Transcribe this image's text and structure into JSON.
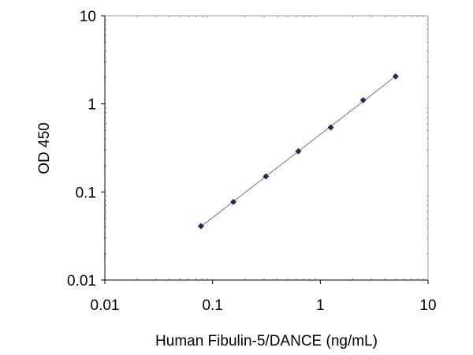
{
  "chart_data": {
    "type": "scatter",
    "title": "",
    "xlabel": "Human Fibulin-5/DANCE   (ng/mL)",
    "ylabel": "OD 450",
    "x_scale": "log",
    "y_scale": "log",
    "xlim": [
      0.01,
      10
    ],
    "ylim": [
      0.01,
      10
    ],
    "x_ticks": [
      "0.01",
      "0.1",
      "1",
      "10"
    ],
    "y_ticks": [
      "0.01",
      "0.1",
      "1",
      "10"
    ],
    "grid": false,
    "legend": "none",
    "series": [
      {
        "x": [
          0.078,
          0.156,
          0.3125,
          0.625,
          1.25,
          2.5,
          5
        ],
        "y": [
          0.041,
          0.077,
          0.15,
          0.29,
          0.54,
          1.1,
          2.05
        ],
        "trendline": "power"
      }
    ],
    "colors": {
      "marker": "#1f2a5c",
      "trendline": "#777777",
      "axis": "#000000"
    }
  }
}
